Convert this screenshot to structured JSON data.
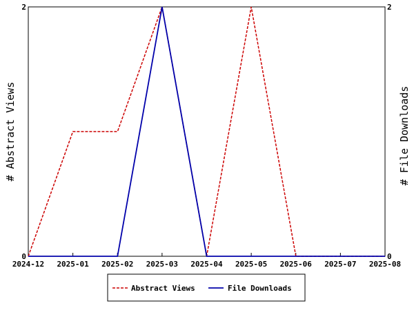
{
  "chart_data": {
    "type": "line",
    "categories": [
      "2024-12",
      "2025-01",
      "2025-02",
      "2025-03",
      "2025-04",
      "2025-05",
      "2025-06",
      "2025-07",
      "2025-08"
    ],
    "series": [
      {
        "name": "Abstract Views",
        "axis": "left",
        "color": "#cc0000",
        "style": "dashed",
        "values": [
          0,
          1,
          1,
          2,
          0,
          2,
          0,
          0,
          0
        ]
      },
      {
        "name": "File Downloads",
        "axis": "right",
        "color": "#0000aa",
        "style": "solid",
        "values": [
          0,
          0,
          0,
          2,
          0,
          0,
          0,
          0,
          0
        ]
      }
    ],
    "ylabel_left": "# Abstract Views",
    "ylabel_right": "# File Downloads",
    "ylim_left": [
      0,
      2
    ],
    "ylim_right": [
      0,
      2
    ],
    "yticks_left": [
      "0",
      "2"
    ],
    "yticks_right": [
      "0",
      "2"
    ],
    "grid": false,
    "legend_placement": "bottom-center"
  }
}
